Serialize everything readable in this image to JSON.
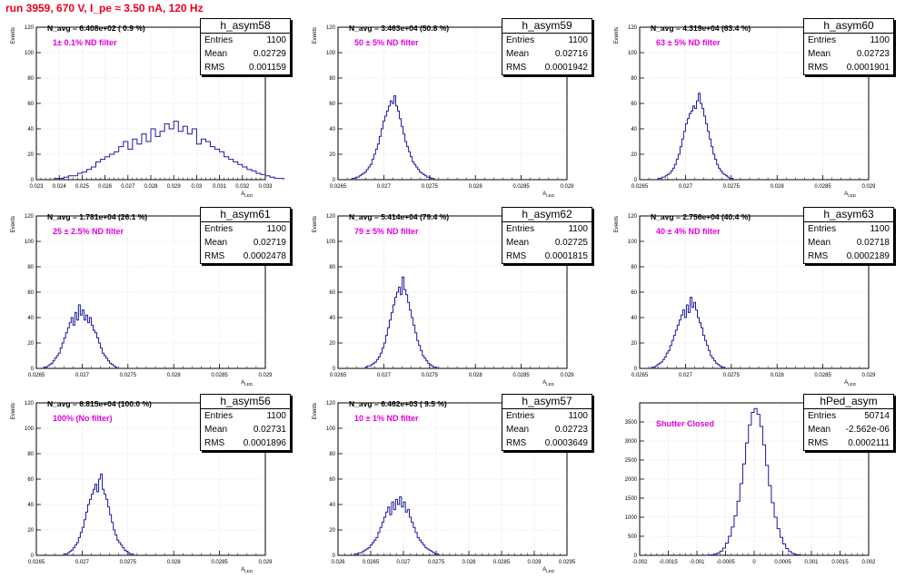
{
  "title": "run 3959,   670 V, I_pe ≈ 3.50 nA, 120 Hz",
  "colors": {
    "title": "#e8001e",
    "histogram": "#1a1aa0",
    "annotation": "#e000e0",
    "grid": "#c8c8c8"
  },
  "stat_labels": {
    "entries": "Entries",
    "mean": "Mean",
    "rms": "RMS"
  },
  "chart_data": [
    {
      "type": "histogram",
      "name": "h_asym58",
      "navg": "N_avg = 6.408e+02 ( 0.9 %)",
      "filter": "1± 0.1% ND filter",
      "stats": {
        "entries": "1100",
        "mean": "0.02729",
        "rms": "0.001159"
      },
      "ylabel": "Events",
      "xlabel": "A_LED",
      "xlim": [
        0.023,
        0.033
      ],
      "ylim": [
        0,
        120
      ],
      "xticks": [
        0.023,
        0.024,
        0.025,
        0.026,
        0.027,
        0.028,
        0.029,
        0.03,
        0.031,
        0.032,
        0.033
      ],
      "xtick_labels": [
        "0.023",
        "0.024",
        "0.025",
        "0.026",
        "0.027",
        "0.028",
        "0.029",
        "0.03",
        "0.031",
        "0.032",
        "0.033"
      ],
      "yticks": [
        0,
        20,
        40,
        60,
        80,
        100,
        120
      ],
      "grid": true,
      "x_start": 0.0238,
      "bin_width": 0.0002,
      "counts": [
        1,
        1,
        2,
        3,
        3,
        5,
        6,
        8,
        10,
        14,
        16,
        18,
        20,
        22,
        26,
        30,
        24,
        32,
        28,
        36,
        30,
        40,
        34,
        38,
        44,
        40,
        46,
        38,
        42,
        36,
        40,
        28,
        32,
        30,
        26,
        24,
        22,
        18,
        16,
        14,
        12,
        10,
        8,
        7,
        5,
        4,
        3,
        2,
        1,
        1
      ]
    },
    {
      "type": "histogram",
      "name": "h_asym59",
      "navg": "N_avg = 3.463e+04 (50.8 %)",
      "filter": "50 ± 5% ND filter",
      "stats": {
        "entries": "1100",
        "mean": "0.02716",
        "rms": "0.0001942"
      },
      "ylabel": "Events",
      "xlabel": "A_LED",
      "xlim": [
        0.0265,
        0.029
      ],
      "ylim": [
        0,
        120
      ],
      "xticks": [
        0.0265,
        0.027,
        0.0275,
        0.028,
        0.0285,
        0.029
      ],
      "xtick_labels": [
        "0.0265",
        "0.027",
        "0.0275",
        "0.028",
        "0.0285",
        "0.029"
      ],
      "yticks": [
        0,
        20,
        40,
        60,
        80,
        100,
        120
      ],
      "grid": true,
      "x_start": 0.02665,
      "bin_width": 2e-05,
      "counts": [
        1,
        1,
        2,
        2,
        3,
        4,
        5,
        6,
        8,
        10,
        12,
        16,
        20,
        24,
        28,
        34,
        40,
        46,
        50,
        54,
        58,
        62,
        60,
        66,
        58,
        54,
        48,
        42,
        36,
        30,
        26,
        22,
        18,
        14,
        12,
        10,
        8,
        6,
        5,
        4,
        3,
        2,
        2,
        1,
        1
      ]
    },
    {
      "type": "histogram",
      "name": "h_asym60",
      "navg": "N_avg = 4.319e+04 (63.4 %)",
      "filter": "63 ± 5% ND filter",
      "stats": {
        "entries": "1100",
        "mean": "0.02723",
        "rms": "0.0001901"
      },
      "ylabel": "Events",
      "xlabel": "A_LED",
      "xlim": [
        0.0265,
        0.029
      ],
      "ylim": [
        0,
        120
      ],
      "xticks": [
        0.0265,
        0.027,
        0.0275,
        0.028,
        0.0285,
        0.029
      ],
      "xtick_labels": [
        "0.0265",
        "0.027",
        "0.0275",
        "0.028",
        "0.0285",
        "0.029"
      ],
      "yticks": [
        0,
        20,
        40,
        60,
        80,
        100,
        120
      ],
      "grid": true,
      "x_start": 0.0267,
      "bin_width": 2e-05,
      "counts": [
        1,
        1,
        2,
        2,
        3,
        4,
        5,
        7,
        9,
        12,
        16,
        20,
        26,
        32,
        38,
        44,
        48,
        52,
        54,
        58,
        56,
        62,
        68,
        60,
        56,
        50,
        44,
        38,
        32,
        26,
        20,
        16,
        12,
        9,
        7,
        5,
        4,
        3,
        2,
        1,
        1
      ]
    },
    {
      "type": "histogram",
      "name": "h_asym61",
      "navg": "N_avg = 1.781e+04 (26.1 %)",
      "filter": "25 ± 2.5% ND filter",
      "stats": {
        "entries": "1100",
        "mean": "0.02719",
        "rms": "0.0002478"
      },
      "ylabel": "Events",
      "xlabel": "A_LED",
      "xlim": [
        0.0265,
        0.029
      ],
      "ylim": [
        0,
        120
      ],
      "xticks": [
        0.0265,
        0.027,
        0.0275,
        0.028,
        0.0285,
        0.029
      ],
      "xtick_labels": [
        "0.0265",
        "0.027",
        "0.0275",
        "0.028",
        "0.0285",
        "0.029"
      ],
      "yticks": [
        0,
        20,
        40,
        60,
        80,
        100,
        120
      ],
      "grid": true,
      "x_start": 0.02658,
      "bin_width": 2e-05,
      "counts": [
        1,
        1,
        2,
        3,
        4,
        6,
        8,
        10,
        12,
        16,
        20,
        24,
        28,
        32,
        36,
        40,
        34,
        44,
        38,
        50,
        42,
        46,
        38,
        42,
        36,
        40,
        34,
        30,
        28,
        24,
        20,
        16,
        12,
        10,
        8,
        6,
        4,
        3,
        2,
        1
      ]
    },
    {
      "type": "histogram",
      "name": "h_asym62",
      "navg": "N_avg = 5.414e+04 (79.4 %)",
      "filter": "79 ± 5% ND filter",
      "stats": {
        "entries": "1100",
        "mean": "0.02725",
        "rms": "0.0001815"
      },
      "ylabel": "Events",
      "xlabel": "A_LED",
      "xlim": [
        0.0265,
        0.029
      ],
      "ylim": [
        0,
        120
      ],
      "xticks": [
        0.0265,
        0.027,
        0.0275,
        0.028,
        0.0285,
        0.029
      ],
      "xtick_labels": [
        "0.0265",
        "0.027",
        "0.0275",
        "0.028",
        "0.0285",
        "0.029"
      ],
      "yticks": [
        0,
        20,
        40,
        60,
        80,
        100,
        120
      ],
      "grid": true,
      "x_start": 0.0268,
      "bin_width": 2e-05,
      "counts": [
        1,
        2,
        2,
        3,
        4,
        5,
        7,
        9,
        12,
        16,
        20,
        26,
        32,
        38,
        44,
        50,
        56,
        60,
        64,
        58,
        72,
        62,
        58,
        52,
        46,
        40,
        34,
        28,
        22,
        18,
        14,
        10,
        8,
        6,
        4,
        3,
        2,
        1,
        1
      ]
    },
    {
      "type": "histogram",
      "name": "h_asym63",
      "navg": "N_avg = 2.756e+04 (40.4 %)",
      "filter": "40 ± 4% ND filter",
      "stats": {
        "entries": "1100",
        "mean": "0.02718",
        "rms": "0.0002189"
      },
      "ylabel": "Events",
      "xlabel": "A_LED",
      "xlim": [
        0.0265,
        0.029
      ],
      "ylim": [
        0,
        120
      ],
      "xticks": [
        0.0265,
        0.027,
        0.0275,
        0.028,
        0.0285,
        0.029
      ],
      "xtick_labels": [
        "0.0265",
        "0.027",
        "0.0275",
        "0.028",
        "0.0285",
        "0.029"
      ],
      "yticks": [
        0,
        20,
        40,
        60,
        80,
        100,
        120
      ],
      "grid": true,
      "x_start": 0.02663,
      "bin_width": 2e-05,
      "counts": [
        1,
        1,
        2,
        3,
        4,
        5,
        7,
        9,
        12,
        14,
        18,
        22,
        26,
        30,
        34,
        38,
        42,
        46,
        40,
        50,
        44,
        56,
        48,
        52,
        46,
        40,
        36,
        32,
        26,
        22,
        18,
        14,
        10,
        8,
        6,
        4,
        3,
        2,
        1,
        1
      ]
    },
    {
      "type": "histogram",
      "name": "h_asym56",
      "navg": "N_avg = 6.815e+04 (100.0 %)",
      "filter": "100% (No filter)",
      "stats": {
        "entries": "1100",
        "mean": "0.02731",
        "rms": "0.0001896"
      },
      "ylabel": "Events",
      "xlabel": "A_LED",
      "xlim": [
        0.0265,
        0.029
      ],
      "ylim": [
        0,
        120
      ],
      "xticks": [
        0.0265,
        0.027,
        0.0275,
        0.028,
        0.0285,
        0.029
      ],
      "xtick_labels": [
        "0.0265",
        "0.027",
        "0.0275",
        "0.028",
        "0.0285",
        "0.029"
      ],
      "yticks": [
        0,
        20,
        40,
        60,
        80,
        100,
        120
      ],
      "grid": true,
      "x_start": 0.0268,
      "bin_width": 2e-05,
      "counts": [
        1,
        1,
        2,
        3,
        4,
        6,
        8,
        10,
        14,
        18,
        22,
        28,
        34,
        40,
        44,
        48,
        52,
        56,
        50,
        60,
        64,
        52,
        48,
        44,
        38,
        32,
        26,
        20,
        16,
        12,
        10,
        8,
        6,
        4,
        3,
        2,
        1,
        1
      ]
    },
    {
      "type": "histogram",
      "name": "h_asym57",
      "navg": "N_avg = 6.462e+03 ( 9.5 %)",
      "filter": "10 ± 1% ND filter",
      "stats": {
        "entries": "1100",
        "mean": "0.02723",
        "rms": "0.0003649"
      },
      "ylabel": "Events",
      "xlabel": "A_LED",
      "xlim": [
        0.026,
        0.0295
      ],
      "ylim": [
        0,
        120
      ],
      "xticks": [
        0.026,
        0.0265,
        0.027,
        0.0275,
        0.028,
        0.0285,
        0.029,
        0.0295
      ],
      "xtick_labels": [
        "0.026",
        "0.0265",
        "0.027",
        "0.0275",
        "0.028",
        "0.0285",
        "0.029",
        "0.0295"
      ],
      "yticks": [
        0,
        20,
        40,
        60,
        80,
        100,
        120
      ],
      "grid": true,
      "x_start": 0.02625,
      "bin_width": 3e-05,
      "counts": [
        1,
        1,
        2,
        2,
        3,
        4,
        5,
        6,
        8,
        10,
        12,
        14,
        18,
        22,
        26,
        30,
        34,
        38,
        32,
        42,
        36,
        44,
        40,
        46,
        38,
        42,
        34,
        36,
        30,
        26,
        22,
        18,
        14,
        12,
        10,
        8,
        6,
        5,
        4,
        3,
        2,
        1,
        1
      ]
    },
    {
      "type": "histogram",
      "name": "hPed_asym",
      "navg": "",
      "filter": "Shutter Closed",
      "stats": {
        "entries": "50714",
        "mean": "-2.562e-06",
        "rms": "0.0002111"
      },
      "ylabel": "",
      "xlabel": "",
      "xlim": [
        -0.002,
        0.002
      ],
      "ylim": [
        0,
        4000
      ],
      "xticks": [
        -0.002,
        -0.0015,
        -0.001,
        -0.0005,
        0,
        0.0005,
        0.001,
        0.0015,
        0.002
      ],
      "xtick_labels": [
        "-0.002",
        "-0.0015",
        "-0.001",
        "-0.0005",
        "0",
        "0.0005",
        "0.001",
        "0.0015",
        "0.002"
      ],
      "yticks": [
        0,
        500,
        1000,
        1500,
        2000,
        2500,
        3000,
        3500
      ],
      "grid": true,
      "x_start": -0.00085,
      "bin_width": 5e-05,
      "counts": [
        3,
        8,
        15,
        30,
        60,
        110,
        190,
        320,
        500,
        740,
        1040,
        1420,
        1880,
        2400,
        2950,
        3420,
        3750,
        3850,
        3700,
        3380,
        2900,
        2360,
        1830,
        1380,
        1000,
        700,
        470,
        300,
        180,
        100,
        55,
        28,
        12,
        5
      ]
    }
  ]
}
